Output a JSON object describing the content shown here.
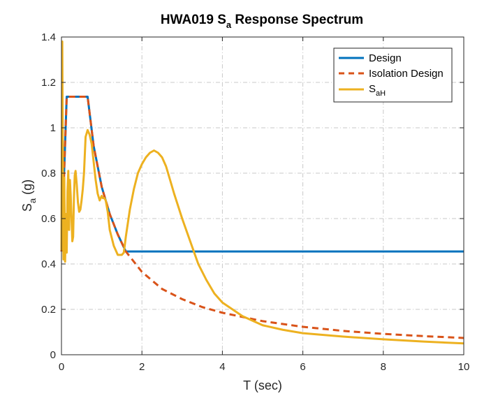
{
  "chart_data": {
    "type": "line",
    "title": "HWA019 S",
    "title_sub": "a",
    "title_rest": " Response Spectrum",
    "xlabel": "T (sec)",
    "ylabel": "S",
    "ylabel_sub": "a",
    "ylabel_rest": " (g)",
    "xlim": [
      0,
      10
    ],
    "ylim": [
      0,
      1.4
    ],
    "xticks": [
      "0",
      "2",
      "4",
      "6",
      "8",
      "10"
    ],
    "yticks": [
      "0",
      "0.2",
      "0.4",
      "0.6",
      "0.8",
      "1",
      "1.2",
      "1.4"
    ],
    "grid": true,
    "legend_position": "top-right",
    "series": [
      {
        "name": "Design",
        "name_sub": "",
        "color": "#0072BD",
        "style": "solid",
        "x": [
          0,
          0.13,
          0.65,
          0.8,
          1.0,
          1.2,
          1.4,
          1.6,
          10
        ],
        "y": [
          0.455,
          1.137,
          1.137,
          0.92,
          0.74,
          0.62,
          0.53,
          0.455,
          0.455
        ]
      },
      {
        "name": "Isolation Design",
        "name_sub": "",
        "color": "#D95319",
        "style": "dashed",
        "x": [
          0,
          0.13,
          0.65,
          0.8,
          1.0,
          1.2,
          1.4,
          1.6,
          2.0,
          2.5,
          3.0,
          3.5,
          4.0,
          5.0,
          6.0,
          7.0,
          8.0,
          9.0,
          10.0
        ],
        "y": [
          0.455,
          1.137,
          1.137,
          0.92,
          0.74,
          0.62,
          0.53,
          0.455,
          0.365,
          0.29,
          0.245,
          0.21,
          0.185,
          0.148,
          0.123,
          0.105,
          0.092,
          0.082,
          0.074
        ]
      },
      {
        "name": "S",
        "name_sub": "aH",
        "color": "#EDB120",
        "style": "solid",
        "x": [
          0,
          0.02,
          0.04,
          0.05,
          0.07,
          0.09,
          0.11,
          0.13,
          0.15,
          0.17,
          0.19,
          0.21,
          0.23,
          0.25,
          0.27,
          0.29,
          0.31,
          0.33,
          0.35,
          0.38,
          0.41,
          0.44,
          0.47,
          0.5,
          0.53,
          0.56,
          0.6,
          0.65,
          0.7,
          0.75,
          0.8,
          0.85,
          0.9,
          0.95,
          1.0,
          1.03,
          1.07,
          1.1,
          1.15,
          1.2,
          1.3,
          1.4,
          1.5,
          1.55,
          1.6,
          1.65,
          1.7,
          1.8,
          1.9,
          2.0,
          2.1,
          2.2,
          2.3,
          2.4,
          2.5,
          2.6,
          2.7,
          2.8,
          3.0,
          3.2,
          3.4,
          3.6,
          3.8,
          4.0,
          4.5,
          5.0,
          5.5,
          6.0,
          7.0,
          8.0,
          9.0,
          10.0
        ],
        "y": [
          0.46,
          1.38,
          0.6,
          0.42,
          0.78,
          0.41,
          0.62,
          0.45,
          0.72,
          0.81,
          0.55,
          0.77,
          0.7,
          0.6,
          0.5,
          0.52,
          0.69,
          0.79,
          0.81,
          0.75,
          0.67,
          0.63,
          0.64,
          0.68,
          0.73,
          0.8,
          0.96,
          0.99,
          0.97,
          0.93,
          0.85,
          0.77,
          0.71,
          0.68,
          0.7,
          0.69,
          0.69,
          0.68,
          0.63,
          0.55,
          0.48,
          0.44,
          0.44,
          0.45,
          0.52,
          0.58,
          0.64,
          0.73,
          0.8,
          0.84,
          0.87,
          0.89,
          0.9,
          0.89,
          0.87,
          0.83,
          0.77,
          0.71,
          0.6,
          0.5,
          0.4,
          0.33,
          0.27,
          0.23,
          0.17,
          0.13,
          0.11,
          0.095,
          0.08,
          0.068,
          0.058,
          0.05
        ]
      }
    ]
  }
}
